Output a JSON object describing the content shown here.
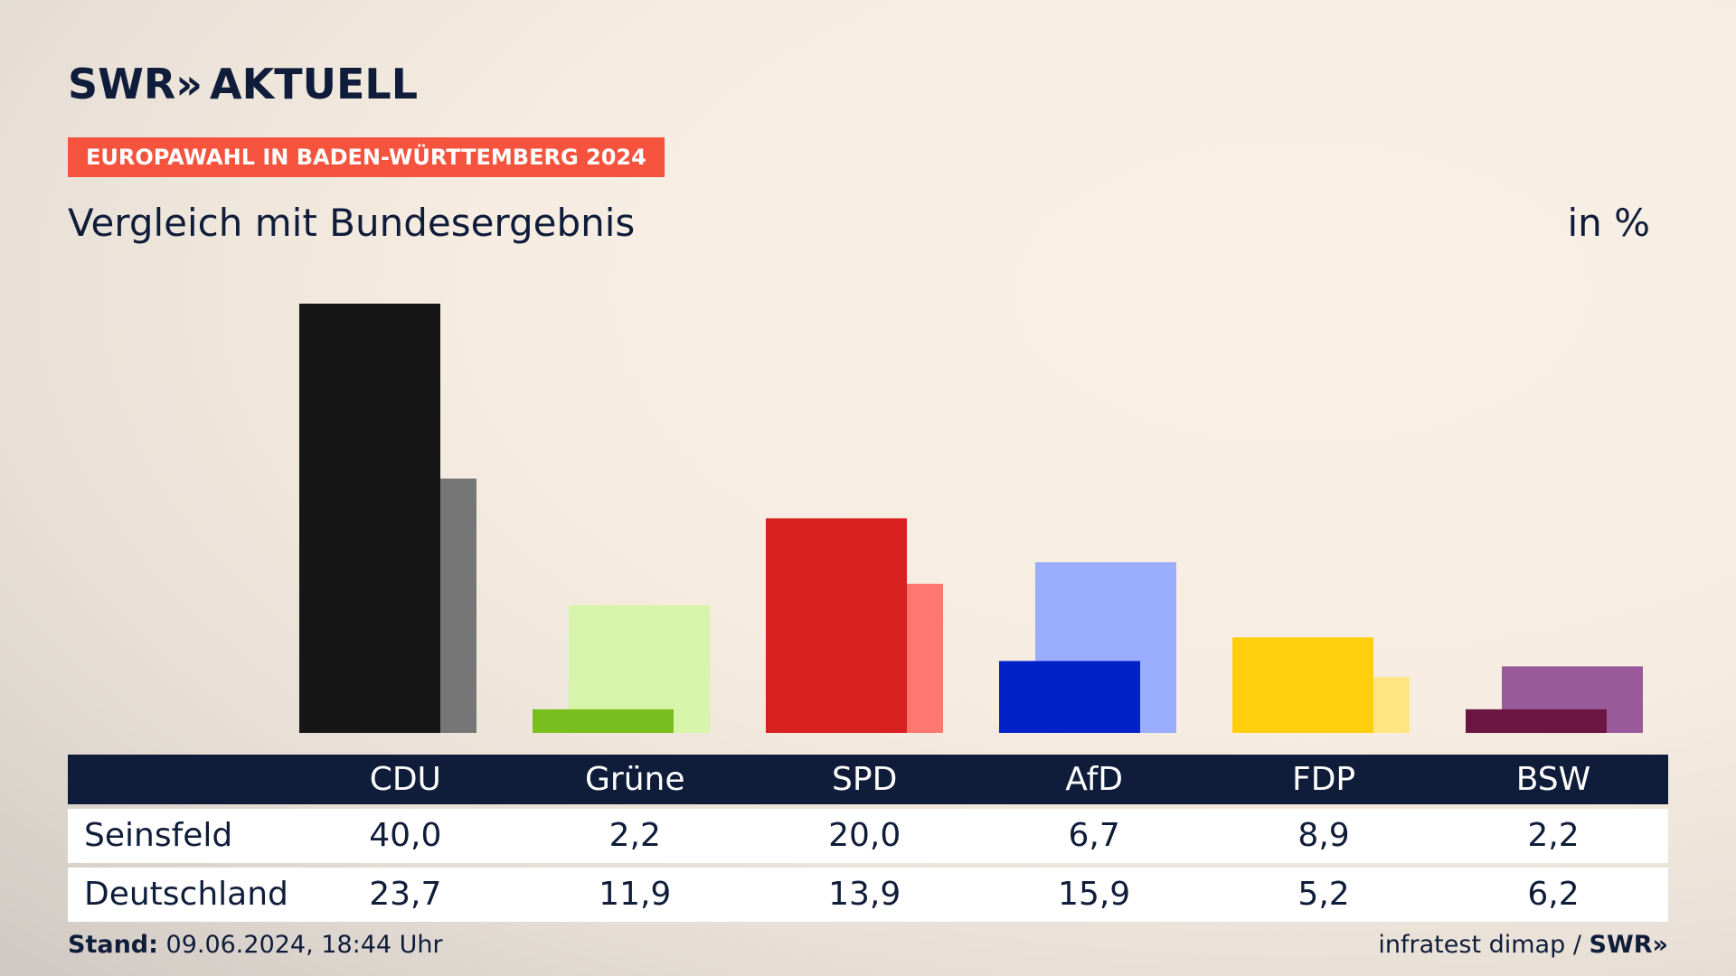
{
  "header": {
    "logo_text": "SWR",
    "logo_chevrons": "»",
    "logo_suffix": "AKTUELL",
    "badge": "EUROPAWAHL IN BADEN-WÜRTTEMBERG 2024",
    "subtitle": "Vergleich mit Bundesergebnis",
    "unit": "in %"
  },
  "chart_data": {
    "type": "bar",
    "categories": [
      "CDU",
      "Grüne",
      "SPD",
      "AfD",
      "FDP",
      "BSW"
    ],
    "series": [
      {
        "name": "Seinsfeld",
        "values": [
          40.0,
          2.2,
          20.0,
          6.7,
          8.9,
          2.2
        ],
        "colors": [
          "#161616",
          "#78be1e",
          "#d7201f",
          "#0022c8",
          "#ffcf0d",
          "#6a1640"
        ]
      },
      {
        "name": "Deutschland",
        "values": [
          23.7,
          11.9,
          13.9,
          15.9,
          5.2,
          6.2
        ],
        "colors": [
          "#767676",
          "#d7f5aa",
          "#ff7870",
          "#9aadff",
          "#ffe582",
          "#9a5a9a"
        ]
      }
    ],
    "ylim": [
      0,
      40
    ]
  },
  "table": {
    "header_label": "",
    "columns": [
      "CDU",
      "Grüne",
      "SPD",
      "AfD",
      "FDP",
      "BSW"
    ],
    "rows": [
      {
        "label": "Seinsfeld",
        "values": [
          "40,0",
          "2,2",
          "20,0",
          "6,7",
          "8,9",
          "2,2"
        ]
      },
      {
        "label": "Deutschland",
        "values": [
          "23,7",
          "11,9",
          "13,9",
          "15,9",
          "5,2",
          "6,2"
        ]
      }
    ]
  },
  "footer": {
    "stand_label": "Stand:",
    "stand_value": "09.06.2024, 18:44 Uhr",
    "source": "infratest dimap /",
    "source_logo": "SWR»"
  }
}
